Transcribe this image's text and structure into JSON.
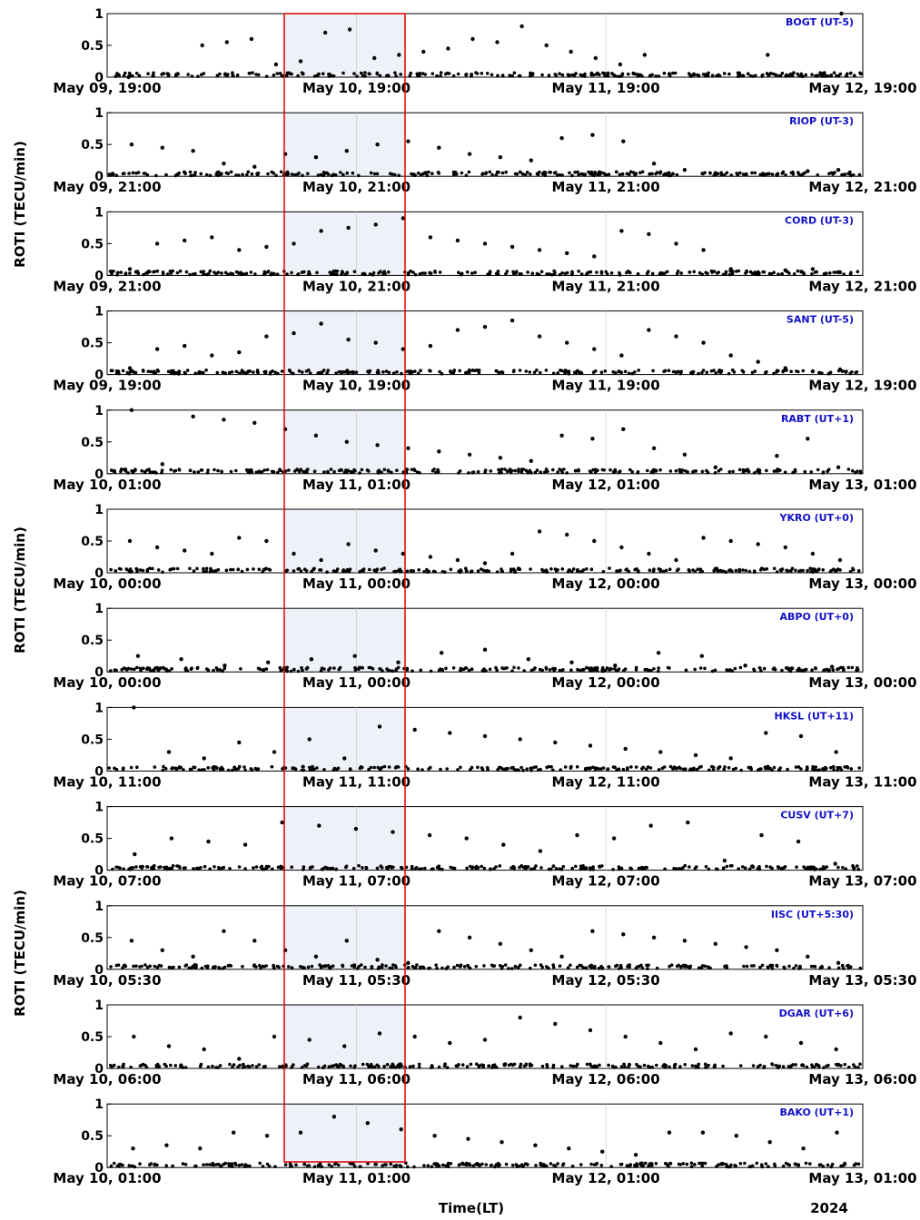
{
  "chart_data": {
    "type": "scatter",
    "y_axis_label": "ROTI (TECU/min)",
    "x_axis_label": "Time(LT)",
    "year_label": "2024",
    "ylim": [
      0,
      1
    ],
    "y_ticks": [
      "0",
      "0.5",
      "1"
    ],
    "marker_color": "#000000",
    "highlight_color": "#e00000",
    "grid": false,
    "panels": [
      {
        "station": "BOGT (UT-5)",
        "x_ticks": [
          "May 09, 19:00",
          "May 10, 19:00",
          "May 11, 19:00",
          "May 12, 19:00"
        ],
        "y_values": [
          0.0,
          0.02,
          0.05,
          0.5,
          0.55,
          0.6,
          0.2,
          0.25,
          0.7,
          0.75,
          0.3,
          0.35,
          0.4,
          0.45,
          0.6,
          0.55,
          0.8,
          0.5,
          0.4,
          0.3,
          0.2,
          0.35,
          0.05,
          0.04,
          0.03,
          0.02,
          0.35,
          0.03,
          0.02,
          1.0
        ]
      },
      {
        "station": "RIOP (UT-3)",
        "x_ticks": [
          "May 09, 21:00",
          "May 10, 21:00",
          "May 11, 21:00",
          "May 12, 21:00"
        ],
        "y_values": [
          0.5,
          0.45,
          0.4,
          0.2,
          0.15,
          0.35,
          0.3,
          0.4,
          0.5,
          0.55,
          0.45,
          0.35,
          0.3,
          0.25,
          0.6,
          0.65,
          0.55,
          0.2,
          0.1,
          0.05,
          0.03,
          0.02,
          0.08,
          0.1
        ]
      },
      {
        "station": "CORD (UT-3)",
        "x_ticks": [
          "May 09, 21:00",
          "May 10, 21:00",
          "May 11, 21:00",
          "May 12, 21:00"
        ],
        "y_values": [
          0.1,
          0.5,
          0.55,
          0.6,
          0.4,
          0.45,
          0.5,
          0.7,
          0.75,
          0.8,
          0.9,
          0.6,
          0.55,
          0.5,
          0.45,
          0.4,
          0.35,
          0.3,
          0.7,
          0.65,
          0.5,
          0.4,
          0.1,
          0.05,
          0.08,
          0.1,
          0.05
        ]
      },
      {
        "station": "SANT (UT-5)",
        "x_ticks": [
          "May 09, 19:00",
          "May 10, 19:00",
          "May 11, 19:00",
          "May 12, 19:00"
        ],
        "y_values": [
          0.1,
          0.4,
          0.45,
          0.3,
          0.35,
          0.6,
          0.65,
          0.8,
          0.55,
          0.5,
          0.4,
          0.45,
          0.7,
          0.75,
          0.85,
          0.6,
          0.5,
          0.4,
          0.3,
          0.7,
          0.6,
          0.5,
          0.3,
          0.2,
          0.1,
          0.05,
          0.08
        ]
      },
      {
        "station": "RABT (UT+1)",
        "x_ticks": [
          "May 10, 01:00",
          "May 11, 01:00",
          "May 12, 01:00",
          "May 13, 01:00"
        ],
        "y_values": [
          1.0,
          0.15,
          0.9,
          0.85,
          0.8,
          0.7,
          0.6,
          0.5,
          0.45,
          0.4,
          0.35,
          0.3,
          0.25,
          0.2,
          0.6,
          0.55,
          0.7,
          0.4,
          0.3,
          0.1,
          0.05,
          0.28,
          0.55,
          0.1
        ]
      },
      {
        "station": "YKRO (UT+0)",
        "x_ticks": [
          "May 10, 00:00",
          "May 11, 00:00",
          "May 12, 00:00",
          "May 13, 00:00"
        ],
        "y_values": [
          0.5,
          0.4,
          0.35,
          0.3,
          0.55,
          0.5,
          0.3,
          0.2,
          0.45,
          0.35,
          0.3,
          0.25,
          0.2,
          0.15,
          0.3,
          0.65,
          0.6,
          0.5,
          0.4,
          0.3,
          0.2,
          0.55,
          0.5,
          0.45,
          0.4,
          0.3,
          0.2
        ]
      },
      {
        "station": "ABPO (UT+0)",
        "x_ticks": [
          "May 10, 00:00",
          "May 11, 00:00",
          "May 12, 00:00",
          "May 13, 00:00"
        ],
        "y_values": [
          0.25,
          0.2,
          0.1,
          0.15,
          0.2,
          0.25,
          0.15,
          0.3,
          0.35,
          0.2,
          0.15,
          0.1,
          0.3,
          0.25,
          0.1,
          0.05,
          0.08
        ]
      },
      {
        "station": "HKSL (UT+11)",
        "x_ticks": [
          "May 10, 11:00",
          "May 11, 11:00",
          "May 12, 11:00",
          "May 13, 11:00"
        ],
        "y_values": [
          1.0,
          0.3,
          0.2,
          0.45,
          0.3,
          0.5,
          0.2,
          0.7,
          0.65,
          0.6,
          0.55,
          0.5,
          0.45,
          0.4,
          0.35,
          0.3,
          0.25,
          0.2,
          0.6,
          0.55,
          0.3
        ]
      },
      {
        "station": "CUSV (UT+7)",
        "x_ticks": [
          "May 10, 07:00",
          "May 11, 07:00",
          "May 12, 07:00",
          "May 13, 07:00"
        ],
        "y_values": [
          0.25,
          0.5,
          0.45,
          0.4,
          0.75,
          0.7,
          0.65,
          0.6,
          0.55,
          0.5,
          0.4,
          0.3,
          0.55,
          0.5,
          0.7,
          0.75,
          0.15,
          0.55,
          0.45,
          0.1
        ]
      },
      {
        "station": "IISC (UT+5:30)",
        "x_ticks": [
          "May 10, 05:30",
          "May 11, 05:30",
          "May 12, 05:30",
          "May 13, 05:30"
        ],
        "y_values": [
          0.45,
          0.3,
          0.2,
          0.6,
          0.45,
          0.3,
          0.2,
          0.45,
          0.15,
          0.1,
          0.6,
          0.5,
          0.4,
          0.3,
          0.2,
          0.6,
          0.55,
          0.5,
          0.45,
          0.4,
          0.35,
          0.3,
          0.2,
          0.1
        ]
      },
      {
        "station": "DGAR (UT+6)",
        "x_ticks": [
          "May 10, 06:00",
          "May 11, 06:00",
          "May 12, 06:00",
          "May 13, 06:00"
        ],
        "y_values": [
          0.5,
          0.35,
          0.3,
          0.15,
          0.5,
          0.45,
          0.35,
          0.55,
          0.5,
          0.4,
          0.45,
          0.8,
          0.7,
          0.6,
          0.5,
          0.4,
          0.3,
          0.55,
          0.5,
          0.4,
          0.3
        ]
      },
      {
        "station": "BAKO (UT+1)",
        "x_ticks": [
          "May 10, 01:00",
          "May 11, 01:00",
          "May 12, 01:00",
          "May 13, 01:00"
        ],
        "y_values": [
          0.3,
          0.35,
          0.3,
          0.55,
          0.5,
          0.55,
          0.8,
          0.7,
          0.6,
          0.5,
          0.45,
          0.4,
          0.35,
          0.3,
          0.25,
          0.2,
          0.55,
          0.55,
          0.5,
          0.4,
          0.3,
          0.55
        ]
      }
    ]
  }
}
